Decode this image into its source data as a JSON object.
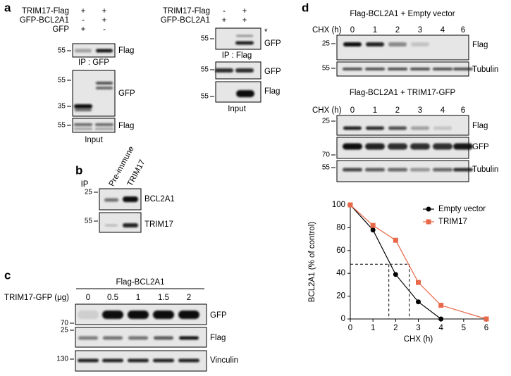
{
  "panel_a": {
    "label": "a",
    "left": {
      "rows": [
        {
          "name": "TRIM17-Flag",
          "lanes": [
            "+",
            "+"
          ]
        },
        {
          "name": "GFP-BCL2A1",
          "lanes": [
            "-",
            "+"
          ]
        },
        {
          "name": "GFP",
          "lanes": [
            "+",
            "-"
          ]
        }
      ],
      "blots": [
        {
          "markers": [
            "55"
          ],
          "label": "Flag"
        },
        {
          "markers": [
            "55",
            "35"
          ],
          "label": "GFP"
        },
        {
          "markers": [
            "55"
          ],
          "label": "Flag"
        }
      ],
      "ip_label": "IP : GFP",
      "input_label": "Input"
    },
    "right": {
      "rows": [
        {
          "name": "TRIM17-Flag",
          "lanes": [
            "-",
            "+"
          ]
        },
        {
          "name": "GFP-BCL2A1",
          "lanes": [
            "+",
            "+"
          ]
        }
      ],
      "blots": [
        {
          "markers": [
            "55"
          ],
          "label": "GFP",
          "asterisk": "*"
        },
        {
          "markers": [
            "55"
          ],
          "label": "GFP"
        },
        {
          "markers": [
            "55"
          ],
          "label": "Flag"
        }
      ],
      "ip_label": "IP : Flag",
      "input_label": "Input"
    }
  },
  "panel_b": {
    "label": "b",
    "ip": "IP",
    "lanes": [
      "Pre-immune",
      "TRIM17"
    ],
    "blots": [
      {
        "markers": [
          "25"
        ],
        "label": "BCL2A1"
      },
      {
        "markers": [
          "55"
        ],
        "label": "TRIM17"
      }
    ]
  },
  "panel_c": {
    "label": "c",
    "title": "Flag-BCL2A1",
    "dose_label": "TRIM17-GFP (μg)",
    "doses": [
      "0",
      "0.5",
      "1",
      "1.5",
      "2"
    ],
    "blots": [
      {
        "markers": [
          "70"
        ],
        "label": "GFP"
      },
      {
        "markers": [
          "25"
        ],
        "label": "Flag"
      },
      {
        "markers": [
          "130"
        ],
        "label": "Vinculin"
      }
    ]
  },
  "panel_d": {
    "label": "d",
    "blocks": [
      {
        "title": "Flag-BCL2A1 + Empty vector",
        "time_label": "CHX  (h)",
        "times": [
          "0",
          "1",
          "2",
          "3",
          "4",
          "6"
        ],
        "blots": [
          {
            "markers": [
              "25"
            ],
            "label": "Flag"
          },
          {
            "markers": [
              "55"
            ],
            "label": "Tubulin"
          }
        ]
      },
      {
        "title": "Flag-BCL2A1 + TRIM17-GFP",
        "time_label": "CHX  (h)",
        "times": [
          "0",
          "1",
          "2",
          "3",
          "4",
          "6"
        ],
        "blots": [
          {
            "markers": [
              "25"
            ],
            "label": "Flag"
          },
          {
            "markers": [
              "70"
            ],
            "label": "GFP"
          },
          {
            "markers": [
              "55"
            ],
            "label": "Tubulin"
          }
        ]
      }
    ]
  },
  "chart_data": {
    "type": "line",
    "x_label": "CHX (h)",
    "y_label": "BCL2A1 (% of control)",
    "x": [
      0,
      1,
      2,
      3,
      4,
      6
    ],
    "series": [
      {
        "name": "Empty vector",
        "color": "#000000",
        "marker": "circle",
        "values": [
          100,
          78,
          39,
          15,
          0,
          null
        ]
      },
      {
        "name": "TRIM17",
        "color": "#e8694a",
        "marker": "square",
        "values": [
          100,
          82,
          69,
          32,
          12,
          0
        ]
      }
    ],
    "xlim": [
      0,
      6
    ],
    "xticks": [
      0,
      1,
      2,
      3,
      4,
      5,
      6
    ],
    "ylim": [
      0,
      100
    ],
    "yticks": [
      0,
      20,
      40,
      60,
      80,
      100
    ],
    "guides": {
      "y": 48,
      "x": [
        1.7,
        2.6
      ]
    },
    "legend": "top-right"
  }
}
